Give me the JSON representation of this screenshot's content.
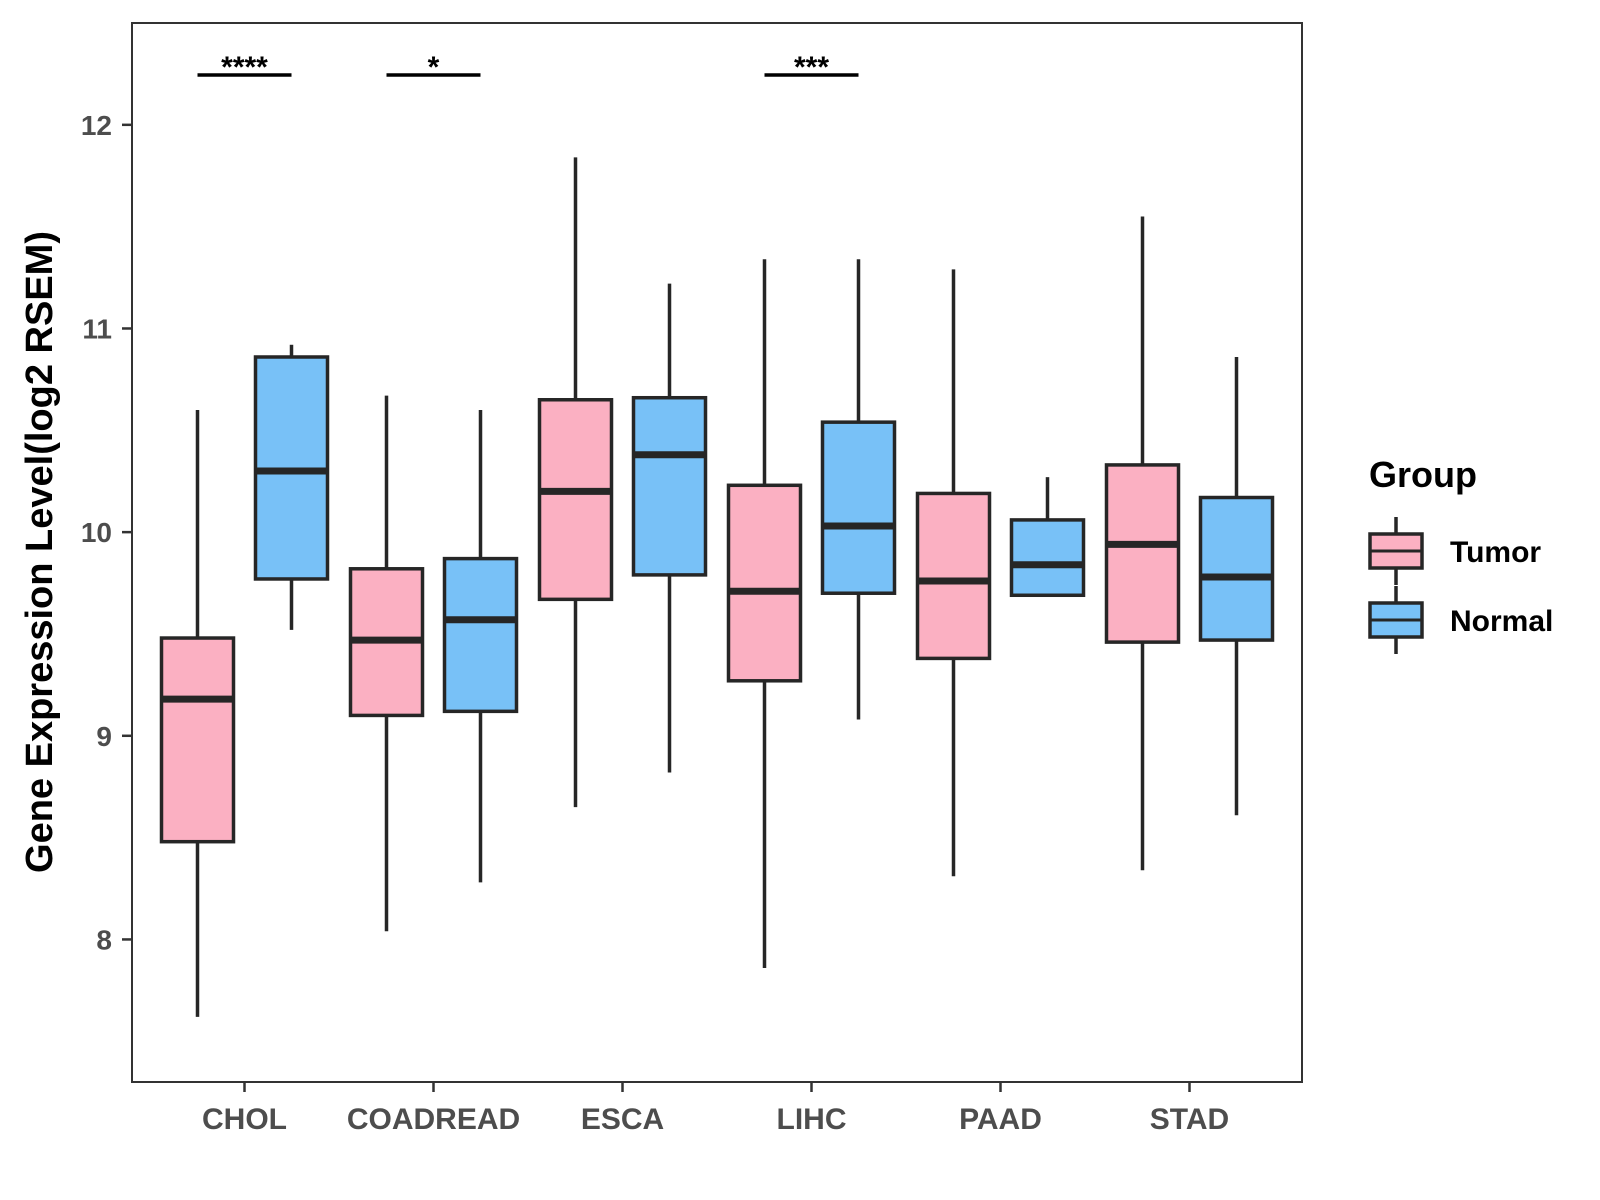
{
  "chart_data": {
    "type": "boxplot",
    "title": "",
    "xlabel": "",
    "ylabel": "Gene Expression Level(log2 RSEM)",
    "ylim": [
      7.3,
      12.5
    ],
    "yticks": [
      8,
      9,
      10,
      11,
      12
    ],
    "grid": false,
    "legend_title": "Group",
    "legend_position": "right",
    "categories": [
      "CHOL",
      "COADREAD",
      "ESCA",
      "LIHC",
      "PAAD",
      "STAD"
    ],
    "series": [
      {
        "name": "Tumor",
        "color": "#fbb0c2",
        "boxes": [
          {
            "min": 7.62,
            "q1": 8.48,
            "median": 9.18,
            "q3": 9.48,
            "max": 10.6
          },
          {
            "min": 8.04,
            "q1": 9.1,
            "median": 9.47,
            "q3": 9.82,
            "max": 10.67
          },
          {
            "min": 8.65,
            "q1": 9.67,
            "median": 10.2,
            "q3": 10.65,
            "max": 11.84
          },
          {
            "min": 7.86,
            "q1": 9.27,
            "median": 9.71,
            "q3": 10.23,
            "max": 11.34
          },
          {
            "min": 8.31,
            "q1": 9.38,
            "median": 9.76,
            "q3": 10.19,
            "max": 11.29
          },
          {
            "min": 8.34,
            "q1": 9.46,
            "median": 9.94,
            "q3": 10.33,
            "max": 11.55
          }
        ]
      },
      {
        "name": "Normal",
        "color": "#78c1f7",
        "boxes": [
          {
            "min": 9.52,
            "q1": 9.77,
            "median": 10.3,
            "q3": 10.86,
            "max": 10.92
          },
          {
            "min": 8.28,
            "q1": 9.12,
            "median": 9.57,
            "q3": 9.87,
            "max": 10.6
          },
          {
            "min": 8.82,
            "q1": 9.79,
            "median": 10.38,
            "q3": 10.66,
            "max": 11.22
          },
          {
            "min": 9.08,
            "q1": 9.7,
            "median": 10.03,
            "q3": 10.54,
            "max": 11.34
          },
          {
            "min": 9.69,
            "q1": 9.69,
            "median": 9.84,
            "q3": 10.06,
            "max": 10.27
          },
          {
            "min": 8.61,
            "q1": 9.47,
            "median": 9.78,
            "q3": 10.17,
            "max": 10.86
          }
        ]
      }
    ],
    "significance": [
      {
        "category": "CHOL",
        "label": "****"
      },
      {
        "category": "COADREAD",
        "label": "*"
      },
      {
        "category": "LIHC",
        "label": "***"
      }
    ]
  }
}
